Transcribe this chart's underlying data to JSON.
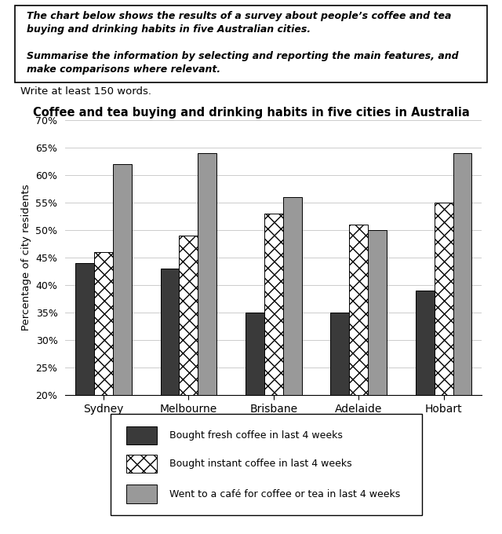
{
  "title": "Coffee and tea buying and drinking habits in five cities in Australia",
  "header_line1": "The chart below shows the results of a survey about people’s coffee and tea",
  "header_line2": "buying and drinking habits in five Australian cities.",
  "header_line3": "Summarise the information by selecting and reporting the main features, and",
  "header_line4": "make comparisons where relevant.",
  "subtext": "Write at least 150 words.",
  "cities": [
    "Sydney",
    "Melbourne",
    "Brisbane",
    "Adelaide",
    "Hobart"
  ],
  "fresh_coffee": [
    44,
    43,
    35,
    35,
    39
  ],
  "instant_coffee": [
    46,
    49,
    53,
    51,
    55
  ],
  "cafe": [
    62,
    64,
    56,
    50,
    64
  ],
  "ylabel": "Percentage of city residents",
  "ylim_min": 20,
  "ylim_max": 70,
  "yticks": [
    20,
    25,
    30,
    35,
    40,
    45,
    50,
    55,
    60,
    65,
    70
  ],
  "color_fresh": "#3a3a3a",
  "color_instant_face": "#ffffff",
  "color_cafe": "#999999",
  "legend_labels": [
    "Bought fresh coffee in last 4 weeks",
    "Bought instant coffee in last 4 weeks",
    "Went to a café for coffee or tea in last 4 weeks"
  ],
  "bar_width": 0.22,
  "hatch_instant": "xx"
}
